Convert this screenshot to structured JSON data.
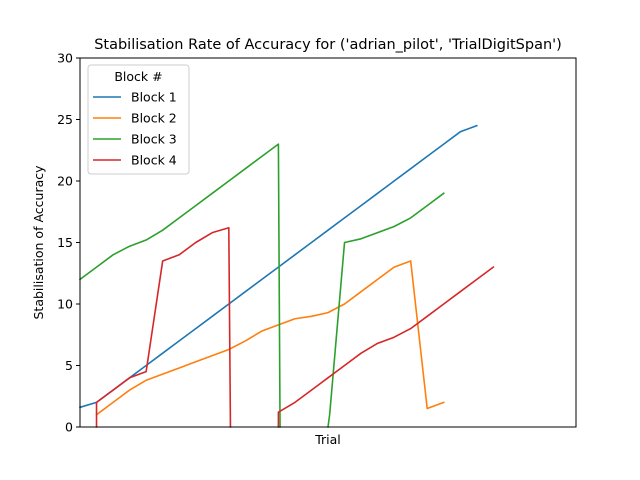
{
  "chart_data": {
    "type": "line",
    "title": "Stabilisation Rate of Accuracy for ('adrian_pilot', 'TrialDigitSpan')",
    "xlabel": "Trial",
    "ylabel": "Stabilisation of Accuracy",
    "xlim": [
      0,
      30
    ],
    "ylim": [
      0,
      30
    ],
    "yticks": [
      "0",
      "5",
      "10",
      "15",
      "20",
      "25",
      "30"
    ],
    "xticks_shown": false,
    "grid": false,
    "legend": {
      "title": "Block #",
      "position": "top-left"
    },
    "series": [
      {
        "name": "Block 1",
        "color": "#1f77b4",
        "points": [
          [
            0,
            1.6
          ],
          [
            1,
            2
          ],
          [
            2,
            3
          ],
          [
            3,
            4
          ],
          [
            4,
            5
          ],
          [
            5,
            6
          ],
          [
            6,
            7
          ],
          [
            7,
            8
          ],
          [
            8,
            9
          ],
          [
            9,
            10
          ],
          [
            10,
            11
          ],
          [
            11,
            12
          ],
          [
            12,
            13
          ],
          [
            13,
            14
          ],
          [
            14,
            15
          ],
          [
            15,
            16
          ],
          [
            16,
            17
          ],
          [
            17,
            18
          ],
          [
            18,
            19
          ],
          [
            19,
            20
          ],
          [
            20,
            21
          ],
          [
            21,
            22
          ],
          [
            22,
            23
          ],
          [
            23,
            24
          ],
          [
            24,
            24.5
          ]
        ]
      },
      {
        "name": "Block 2",
        "color": "#ff7f0e",
        "points": [
          [
            1,
            1
          ],
          [
            2,
            2
          ],
          [
            3,
            3
          ],
          [
            4,
            3.8
          ],
          [
            5,
            4.3
          ],
          [
            6,
            4.8
          ],
          [
            7,
            5.3
          ],
          [
            8,
            5.8
          ],
          [
            9,
            6.3
          ],
          [
            10,
            7
          ],
          [
            11,
            7.8
          ],
          [
            12,
            8.3
          ],
          [
            13,
            8.8
          ],
          [
            14,
            9
          ],
          [
            15,
            9.3
          ],
          [
            16,
            10
          ],
          [
            17,
            11
          ],
          [
            18,
            12
          ],
          [
            19,
            13
          ],
          [
            20,
            13.5
          ],
          [
            21,
            1.5
          ],
          [
            22,
            2
          ]
        ]
      },
      {
        "name": "Block 3",
        "color": "#2ca02c",
        "points": [
          [
            0,
            12
          ],
          [
            1,
            13
          ],
          [
            2,
            14
          ],
          [
            3,
            14.7
          ],
          [
            4,
            15.2
          ],
          [
            5,
            16
          ],
          [
            6,
            17
          ],
          [
            7,
            18
          ],
          [
            8,
            19
          ],
          [
            9,
            20
          ],
          [
            10,
            21
          ],
          [
            11,
            22
          ],
          [
            12,
            23
          ],
          [
            12.1,
            0
          ],
          null,
          [
            15,
            0
          ],
          [
            15.1,
            1
          ],
          [
            16,
            15
          ],
          [
            17,
            15.3
          ],
          [
            18,
            15.8
          ],
          [
            19,
            16.3
          ],
          [
            20,
            17
          ],
          [
            21,
            18
          ],
          [
            22,
            19
          ]
        ]
      },
      {
        "name": "Block 4",
        "color": "#d62728",
        "points": [
          [
            1,
            0
          ],
          [
            1,
            2
          ],
          [
            2,
            3
          ],
          [
            3,
            4
          ],
          [
            4,
            4.5
          ],
          [
            5,
            13.5
          ],
          [
            6,
            14
          ],
          [
            7,
            15
          ],
          [
            8,
            15.8
          ],
          [
            9,
            16.2
          ],
          [
            9.1,
            0
          ],
          null,
          [
            12,
            0
          ],
          [
            12,
            1.2
          ],
          [
            13,
            2
          ],
          [
            14,
            3
          ],
          [
            15,
            4
          ],
          [
            16,
            5
          ],
          [
            17,
            6
          ],
          [
            18,
            6.8
          ],
          [
            19,
            7.3
          ],
          [
            20,
            8
          ],
          [
            21,
            9
          ],
          [
            22,
            10
          ],
          [
            23,
            11
          ],
          [
            24,
            12
          ],
          [
            25,
            13
          ]
        ]
      }
    ]
  }
}
